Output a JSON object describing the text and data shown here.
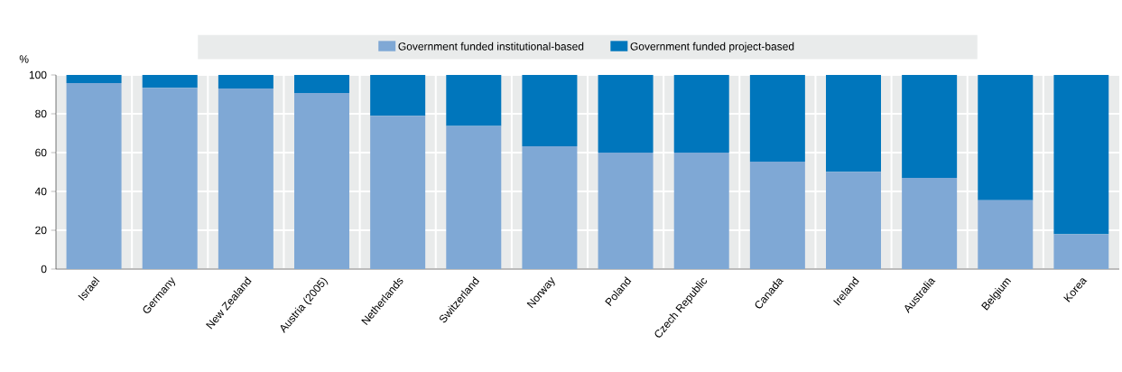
{
  "chart_data": {
    "type": "bar",
    "stacked": true,
    "ylabel": "%",
    "categories": [
      "Israel",
      "Germany",
      "New Zealand",
      "Austria (2005)",
      "Netherlands",
      "Switzerland",
      "Norway",
      "Poland",
      "Czech Republic",
      "Canada",
      "Ireland",
      "Australia",
      "Belgium",
      "Korea"
    ],
    "series": [
      {
        "name": "Government funded institutional-based",
        "color": "#7fa8d5",
        "values": [
          95.8,
          93.4,
          93.0,
          90.7,
          79.0,
          73.7,
          63.3,
          60.0,
          60.0,
          55.4,
          50.1,
          47.0,
          35.5,
          17.9
        ]
      },
      {
        "name": "Government funded project-based",
        "color": "#0076bc",
        "values": [
          4.2,
          6.6,
          7.0,
          9.3,
          21.0,
          26.3,
          36.7,
          40.0,
          40.0,
          44.6,
          49.9,
          53.0,
          64.5,
          82.1
        ]
      }
    ],
    "ylim": [
      0,
      100
    ],
    "yticks": [
      0,
      20,
      40,
      60,
      80,
      100
    ],
    "grid": true,
    "legend": "top"
  }
}
